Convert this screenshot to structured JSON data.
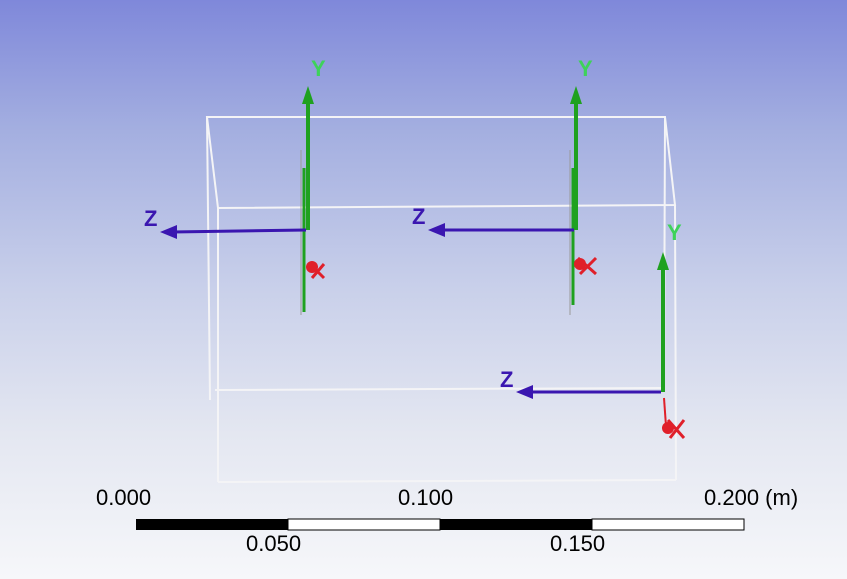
{
  "axis_labels": {
    "y": "Y",
    "z": "Z",
    "x": "X"
  },
  "scale_bar": {
    "top_labels": [
      "0.000",
      "0.100",
      "0.200 (m)"
    ],
    "bottom_labels": [
      "0.050",
      "0.150"
    ]
  },
  "colors": {
    "y_axis": "#1fa11f",
    "y_label": "#3ed25a",
    "z_axis": "#3a16b0",
    "x_axis": "#e0202a",
    "box_edge": "#f4f4f6"
  }
}
